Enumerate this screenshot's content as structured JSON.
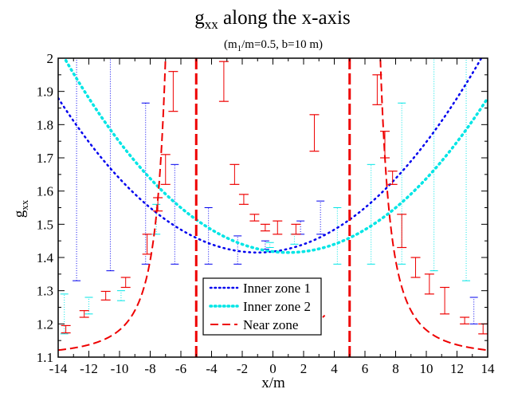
{
  "chart_data": {
    "type": "line",
    "title_main": "g",
    "title_sub": "xx",
    "title_rest": " along the x-axis",
    "subtitle_pre": "(m",
    "subtitle_sub": "1",
    "subtitle_post": "/m=0.5, b=10 m)",
    "xlabel": "x/m",
    "ylabel_main": "g",
    "ylabel_sub": "xx",
    "xlim": [
      -14,
      14
    ],
    "ylim": [
      1.1,
      2.0
    ],
    "xticks": [
      -14,
      -12,
      -10,
      -8,
      -6,
      -4,
      -2,
      0,
      2,
      4,
      6,
      8,
      10,
      12,
      14
    ],
    "yticks": [
      1.1,
      1.2,
      1.3,
      1.4,
      1.5,
      1.6,
      1.7,
      1.8,
      1.9,
      2.0
    ],
    "xtick_labels": [
      "-14",
      "-12",
      "-10",
      "-8",
      "-6",
      "-4",
      "-2",
      "0",
      "2",
      "4",
      "6",
      "8",
      "10",
      "12",
      "14"
    ],
    "ytick_labels": [
      "1.1",
      "1.2",
      "1.3",
      "1.4",
      "1.5",
      "1.6",
      "1.7",
      "1.8",
      "1.9",
      "2"
    ],
    "legend_position": "bottom-center",
    "vertical_lines": [
      -5,
      5
    ],
    "series": [
      {
        "name": "Inner zone 1",
        "style": "dotted",
        "color": "#0000ee"
      },
      {
        "name": "Inner zone 2",
        "style": "dotted",
        "color": "#00e5e5"
      },
      {
        "name": "Near zone",
        "style": "dashed",
        "color": "#ee0000"
      }
    ],
    "near_zone_errorbars": [
      {
        "x": -13.5,
        "lo": 1.173,
        "hi": 1.195
      },
      {
        "x": -12.3,
        "lo": 1.22,
        "hi": 1.24
      },
      {
        "x": -10.9,
        "lo": 1.272,
        "hi": 1.298
      },
      {
        "x": -9.6,
        "lo": 1.31,
        "hi": 1.34
      },
      {
        "x": -8.2,
        "lo": 1.41,
        "hi": 1.47
      },
      {
        "x": -7.5,
        "lo": 1.54,
        "hi": 1.58
      },
      {
        "x": -7.0,
        "lo": 1.62,
        "hi": 1.71
      },
      {
        "x": -6.5,
        "lo": 1.84,
        "hi": 1.96
      },
      {
        "x": -3.2,
        "lo": 1.87,
        "hi": 1.99
      },
      {
        "x": -2.5,
        "lo": 1.62,
        "hi": 1.68
      },
      {
        "x": -1.9,
        "lo": 1.56,
        "hi": 1.59
      },
      {
        "x": -1.2,
        "lo": 1.51,
        "hi": 1.53
      },
      {
        "x": -0.5,
        "lo": 1.48,
        "hi": 1.5
      },
      {
        "x": 0.3,
        "lo": 1.47,
        "hi": 1.51
      },
      {
        "x": 1.5,
        "lo": 1.47,
        "hi": 1.5
      },
      {
        "x": 2.7,
        "lo": 1.72,
        "hi": 1.83
      },
      {
        "x": 6.8,
        "lo": 1.86,
        "hi": 1.95
      },
      {
        "x": 7.3,
        "lo": 1.7,
        "hi": 1.78
      },
      {
        "x": 7.8,
        "lo": 1.62,
        "hi": 1.66
      },
      {
        "x": 8.4,
        "lo": 1.43,
        "hi": 1.53
      },
      {
        "x": 9.3,
        "lo": 1.34,
        "hi": 1.4
      },
      {
        "x": 10.2,
        "lo": 1.29,
        "hi": 1.35
      },
      {
        "x": 11.2,
        "lo": 1.23,
        "hi": 1.31
      },
      {
        "x": 12.5,
        "lo": 1.2,
        "hi": 1.22
      },
      {
        "x": 13.7,
        "lo": 1.17,
        "hi": 1.2
      }
    ],
    "inner1_errorbars": [
      {
        "x": -12.8,
        "lo": 1.33,
        "hi": 2.0
      },
      {
        "x": -10.6,
        "lo": 1.36,
        "hi": 2.0
      },
      {
        "x": -8.3,
        "lo": 1.38,
        "hi": 1.865
      },
      {
        "x": -6.4,
        "lo": 1.38,
        "hi": 1.68
      },
      {
        "x": -4.2,
        "lo": 1.38,
        "hi": 1.55
      },
      {
        "x": -2.3,
        "lo": 1.38,
        "hi": 1.465
      },
      {
        "x": -0.5,
        "lo": 1.425,
        "hi": 1.45
      },
      {
        "x": 1.8,
        "lo": 1.47,
        "hi": 1.51
      },
      {
        "x": 3.1,
        "lo": 1.47,
        "hi": 1.57
      },
      {
        "x": 13.1,
        "lo": 1.2,
        "hi": 1.28
      }
    ],
    "inner2_errorbars": [
      {
        "x": -13.6,
        "lo": 1.17,
        "hi": 1.29
      },
      {
        "x": -12.0,
        "lo": 1.23,
        "hi": 1.28
      },
      {
        "x": -9.9,
        "lo": 1.27,
        "hi": 1.3
      },
      {
        "x": -7.6,
        "lo": 1.47,
        "hi": 1.56
      },
      {
        "x": -0.2,
        "lo": 1.43,
        "hi": 1.445
      },
      {
        "x": 1.4,
        "lo": 1.44,
        "hi": 1.47
      },
      {
        "x": 4.2,
        "lo": 1.38,
        "hi": 1.55
      },
      {
        "x": 6.4,
        "lo": 1.38,
        "hi": 1.68
      },
      {
        "x": 8.4,
        "lo": 1.38,
        "hi": 1.865
      },
      {
        "x": 10.5,
        "lo": 1.36,
        "hi": 2.0
      },
      {
        "x": 12.6,
        "lo": 1.33,
        "hi": 2.0
      }
    ]
  }
}
